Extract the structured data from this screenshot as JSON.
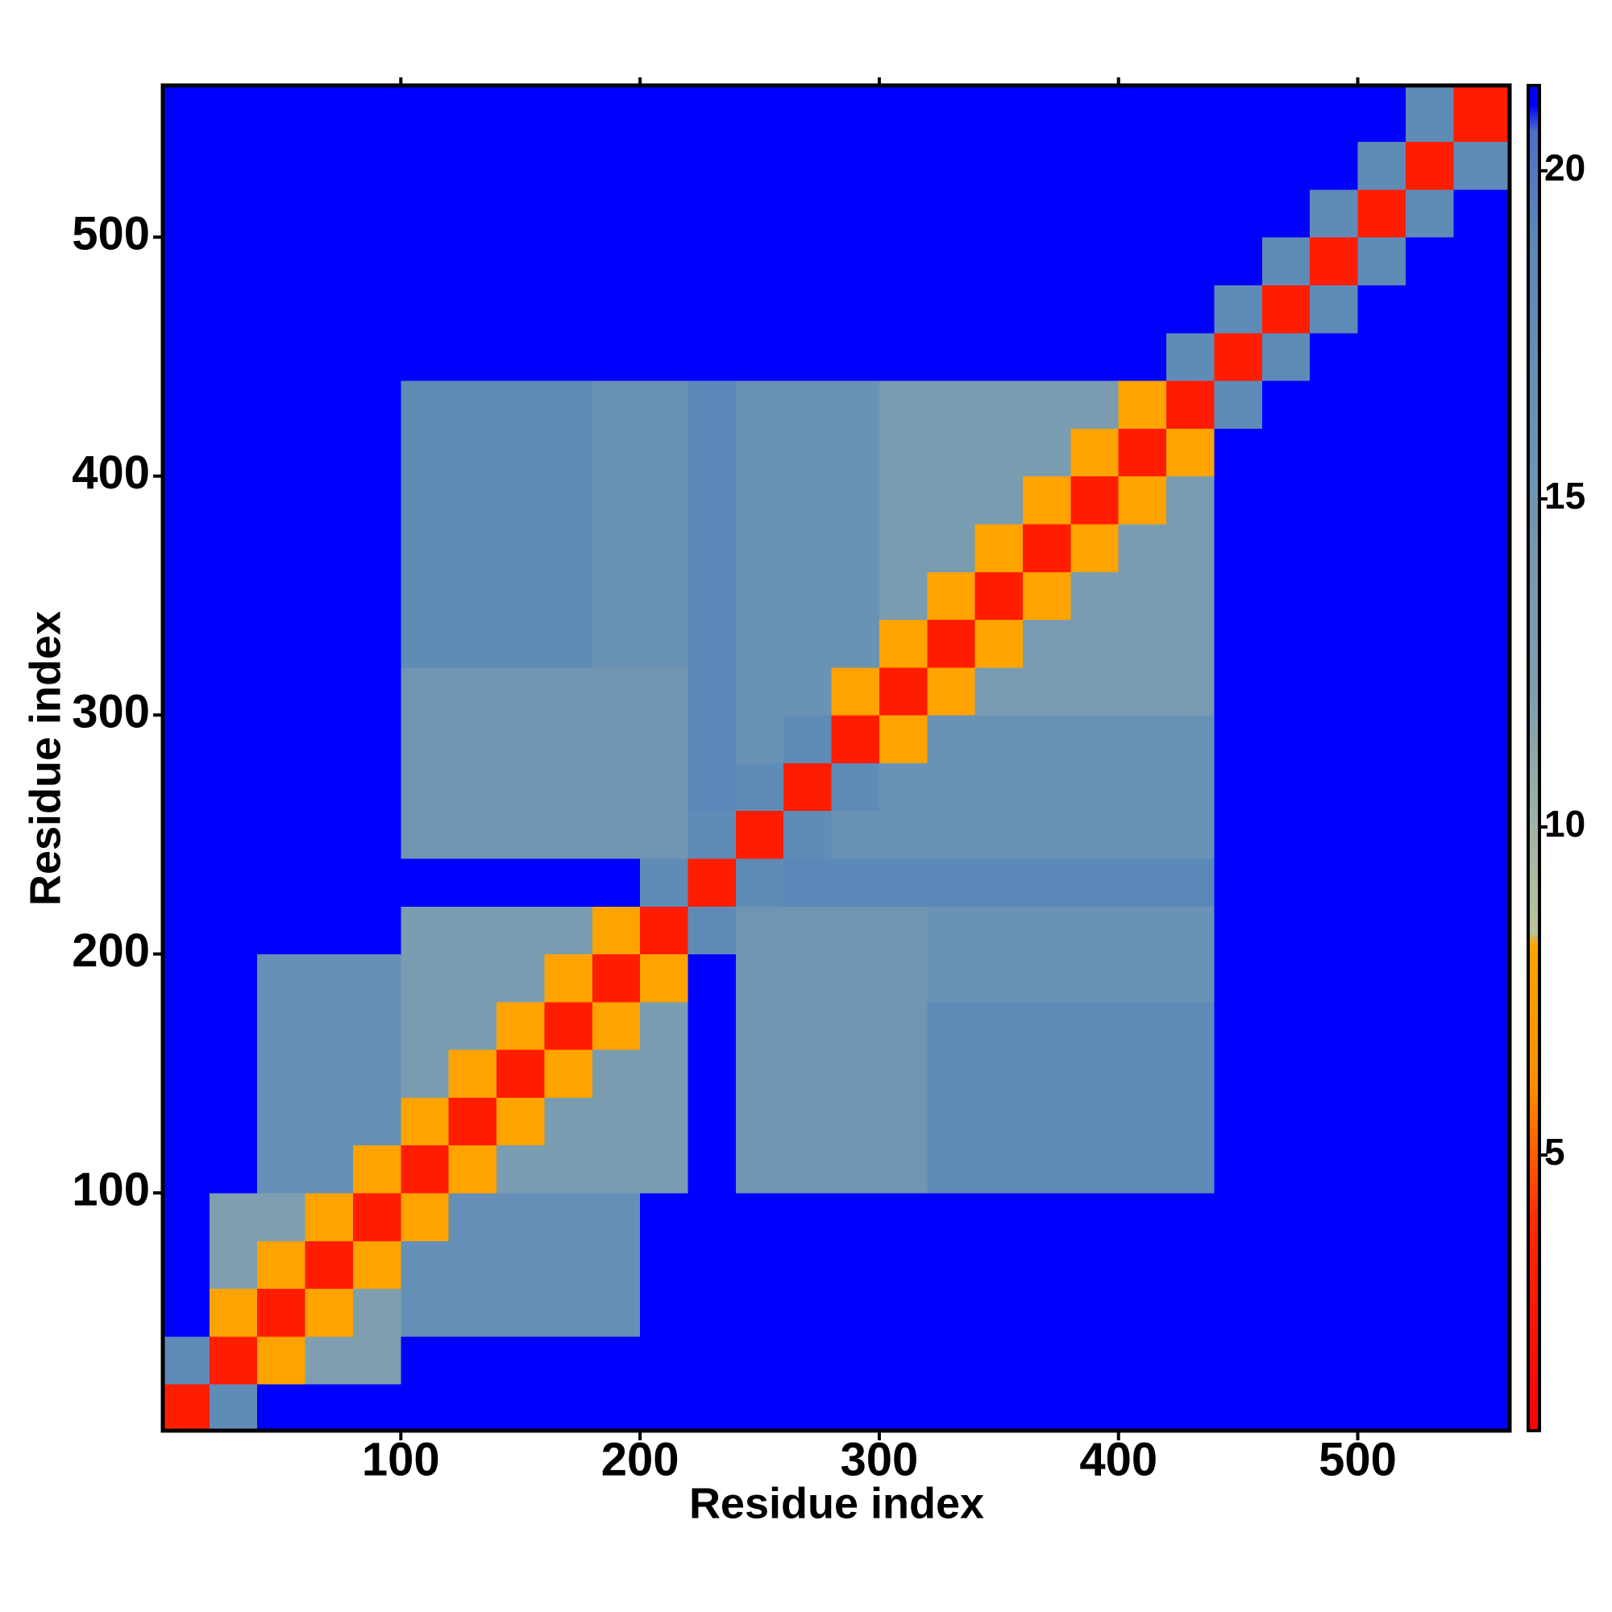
{
  "chart_data": {
    "type": "heatmap",
    "x_label": "Residue index",
    "y_label": "Residue index",
    "xlim": [
      0.5,
      563.5
    ],
    "ylim": [
      0.5,
      563.5
    ],
    "xticks": [
      100,
      200,
      300,
      400,
      500
    ],
    "yticks": [
      100,
      200,
      300,
      400,
      500
    ],
    "xbins": [
      0,
      20,
      40,
      60,
      80,
      100,
      120,
      140,
      160,
      180,
      200,
      220,
      240,
      260,
      280,
      300,
      320,
      340,
      360,
      380,
      400,
      420,
      440,
      460,
      480,
      500,
      520,
      540,
      563.5
    ],
    "ybins": [
      0,
      20,
      40,
      60,
      80,
      100,
      120,
      140,
      160,
      180,
      200,
      220,
      240,
      260,
      280,
      300,
      320,
      340,
      360,
      380,
      400,
      420,
      440,
      460,
      480,
      500,
      520,
      540,
      563.5
    ],
    "z": [
      [
        3,
        18,
        21,
        21,
        21,
        21,
        21,
        21,
        21,
        21,
        21,
        21,
        21,
        21,
        21,
        21,
        21,
        21,
        21,
        21,
        21,
        21,
        21,
        21,
        21,
        21,
        21,
        21
      ],
      [
        18,
        3,
        8,
        12,
        12,
        21,
        21,
        21,
        21,
        21,
        21,
        21,
        21,
        21,
        21,
        21,
        21,
        21,
        21,
        21,
        21,
        21,
        21,
        21,
        21,
        21,
        21,
        21
      ],
      [
        21,
        8,
        3,
        8,
        12,
        17,
        17,
        17,
        17,
        17,
        21,
        21,
        21,
        21,
        21,
        21,
        21,
        21,
        21,
        21,
        21,
        21,
        21,
        21,
        21,
        21,
        21,
        21
      ],
      [
        21,
        12,
        8,
        3,
        8,
        17,
        17,
        17,
        17,
        17,
        21,
        21,
        21,
        21,
        21,
        21,
        21,
        21,
        21,
        21,
        21,
        21,
        21,
        21,
        21,
        21,
        21,
        21
      ],
      [
        21,
        12,
        12,
        8,
        3,
        8,
        17,
        17,
        17,
        17,
        21,
        21,
        21,
        21,
        21,
        21,
        21,
        21,
        21,
        21,
        21,
        21,
        21,
        21,
        21,
        21,
        21,
        21
      ],
      [
        21,
        21,
        17,
        17,
        8,
        3,
        8,
        13,
        13,
        13,
        13,
        21,
        15,
        15,
        15,
        15,
        18,
        18,
        18,
        18,
        18,
        18,
        21,
        21,
        21,
        21,
        21,
        21
      ],
      [
        21,
        21,
        17,
        17,
        17,
        8,
        3,
        8,
        13,
        13,
        13,
        21,
        15,
        15,
        15,
        15,
        18,
        18,
        18,
        18,
        18,
        18,
        21,
        21,
        21,
        21,
        21,
        21
      ],
      [
        21,
        21,
        17,
        17,
        17,
        13,
        8,
        3,
        8,
        13,
        13,
        21,
        15,
        15,
        15,
        15,
        18,
        18,
        18,
        18,
        18,
        18,
        21,
        21,
        21,
        21,
        21,
        21
      ],
      [
        21,
        21,
        17,
        17,
        17,
        13,
        13,
        8,
        3,
        8,
        13,
        21,
        15,
        15,
        15,
        15,
        18,
        18,
        18,
        18,
        18,
        18,
        21,
        21,
        21,
        21,
        21,
        21
      ],
      [
        21,
        21,
        17,
        17,
        17,
        13,
        13,
        13,
        8,
        3,
        8,
        21,
        15,
        15,
        15,
        15,
        16,
        16,
        16,
        16,
        16,
        16,
        21,
        21,
        21,
        21,
        21,
        21
      ],
      [
        21,
        21,
        21,
        21,
        21,
        13,
        13,
        13,
        13,
        8,
        3,
        18,
        15,
        15,
        15,
        15,
        16,
        16,
        16,
        16,
        16,
        16,
        21,
        21,
        21,
        21,
        21,
        21
      ],
      [
        21,
        21,
        21,
        21,
        21,
        21,
        21,
        21,
        21,
        21,
        18,
        3,
        18,
        19,
        19,
        19,
        19,
        19,
        19,
        19,
        19,
        19,
        21,
        21,
        21,
        21,
        21,
        21
      ],
      [
        21,
        21,
        21,
        21,
        21,
        15,
        15,
        15,
        15,
        15,
        15,
        18,
        3,
        18,
        16,
        16,
        16,
        16,
        16,
        16,
        16,
        16,
        21,
        21,
        21,
        21,
        21,
        21
      ],
      [
        21,
        21,
        21,
        21,
        21,
        15,
        15,
        15,
        15,
        15,
        15,
        19,
        18,
        3,
        18,
        16,
        16,
        16,
        16,
        16,
        16,
        16,
        21,
        21,
        21,
        21,
        21,
        21
      ],
      [
        21,
        21,
        21,
        21,
        21,
        15,
        15,
        15,
        15,
        15,
        15,
        19,
        16,
        18,
        3,
        8,
        16,
        16,
        16,
        16,
        16,
        16,
        21,
        21,
        21,
        21,
        21,
        21
      ],
      [
        21,
        21,
        21,
        21,
        21,
        15,
        15,
        15,
        15,
        15,
        15,
        19,
        16,
        16,
        8,
        3,
        8,
        13,
        13,
        13,
        13,
        13,
        21,
        21,
        21,
        21,
        21,
        21
      ],
      [
        21,
        21,
        21,
        21,
        21,
        18,
        18,
        18,
        18,
        16,
        16,
        19,
        16,
        16,
        16,
        8,
        3,
        8,
        13,
        13,
        13,
        13,
        21,
        21,
        21,
        21,
        21,
        21
      ],
      [
        21,
        21,
        21,
        21,
        21,
        18,
        18,
        18,
        18,
        16,
        16,
        19,
        16,
        16,
        16,
        13,
        8,
        3,
        8,
        13,
        13,
        13,
        21,
        21,
        21,
        21,
        21,
        21
      ],
      [
        21,
        21,
        21,
        21,
        21,
        18,
        18,
        18,
        18,
        16,
        16,
        19,
        16,
        16,
        16,
        13,
        13,
        8,
        3,
        8,
        13,
        13,
        21,
        21,
        21,
        21,
        21,
        21
      ],
      [
        21,
        21,
        21,
        21,
        21,
        18,
        18,
        18,
        18,
        16,
        16,
        19,
        16,
        16,
        16,
        13,
        13,
        13,
        8,
        3,
        8,
        13,
        21,
        21,
        21,
        21,
        21,
        21
      ],
      [
        21,
        21,
        21,
        21,
        21,
        18,
        18,
        18,
        18,
        16,
        16,
        19,
        16,
        16,
        16,
        13,
        13,
        13,
        13,
        8,
        3,
        8,
        21,
        21,
        21,
        21,
        21,
        21
      ],
      [
        21,
        21,
        21,
        21,
        21,
        18,
        18,
        18,
        18,
        16,
        16,
        19,
        16,
        16,
        16,
        13,
        13,
        13,
        13,
        13,
        8,
        3,
        18,
        21,
        21,
        21,
        21,
        21
      ],
      [
        21,
        21,
        21,
        21,
        21,
        21,
        21,
        21,
        21,
        21,
        21,
        21,
        21,
        21,
        21,
        21,
        21,
        21,
        21,
        21,
        21,
        18,
        3,
        18,
        21,
        21,
        21,
        21
      ],
      [
        21,
        21,
        21,
        21,
        21,
        21,
        21,
        21,
        21,
        21,
        21,
        21,
        21,
        21,
        21,
        21,
        21,
        21,
        21,
        21,
        21,
        21,
        18,
        3,
        18,
        21,
        21,
        21
      ],
      [
        21,
        21,
        21,
        21,
        21,
        21,
        21,
        21,
        21,
        21,
        21,
        21,
        21,
        21,
        21,
        21,
        21,
        21,
        21,
        21,
        21,
        21,
        21,
        18,
        3,
        18,
        21,
        21
      ],
      [
        21,
        21,
        21,
        21,
        21,
        21,
        21,
        21,
        21,
        21,
        21,
        21,
        21,
        21,
        21,
        21,
        21,
        21,
        21,
        21,
        21,
        21,
        21,
        21,
        18,
        3,
        18,
        21
      ],
      [
        21,
        21,
        21,
        21,
        21,
        21,
        21,
        21,
        21,
        21,
        21,
        21,
        21,
        21,
        21,
        21,
        21,
        21,
        21,
        21,
        21,
        21,
        21,
        21,
        21,
        18,
        3,
        18
      ],
      [
        21,
        21,
        21,
        21,
        21,
        21,
        21,
        21,
        21,
        21,
        21,
        21,
        21,
        21,
        21,
        21,
        21,
        21,
        21,
        21,
        21,
        21,
        21,
        21,
        21,
        21,
        18,
        3
      ]
    ],
    "colorscale": [
      [
        0.8,
        "#ff0000"
      ],
      [
        4,
        "#ff2a00"
      ],
      [
        6,
        "#ff8c00"
      ],
      [
        8.2,
        "#ffa500"
      ],
      [
        8.4,
        "#b9c49c"
      ],
      [
        12,
        "#7f9fb0"
      ],
      [
        19,
        "#5a88b8"
      ],
      [
        20.6,
        "#4b70c8"
      ],
      [
        21,
        "#0000ff"
      ],
      [
        21.3,
        "#0000ff"
      ]
    ],
    "colorbar": {
      "lim": [
        0.8,
        21.3
      ],
      "ticks": [
        5,
        10,
        15,
        20
      ]
    }
  }
}
